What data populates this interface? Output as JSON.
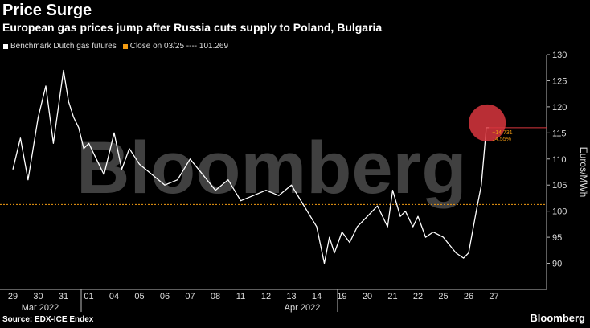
{
  "title": "Price Surge",
  "subtitle": "European gas prices jump after Russia cuts supply to Poland, Bulgaria",
  "legend": {
    "series_label": "Benchmark Dutch gas futures",
    "reference_label": "Close on 03/25 ---- 101.269"
  },
  "source": "Source: EDX-ICE Endex",
  "brand": "Bloomberg",
  "watermark": "Bloomberg",
  "colors": {
    "background": "#000000",
    "line": "#ffffff",
    "reference": "#f39c12",
    "highlight": "#d9363e",
    "grid": "#2a2a2a"
  },
  "chart_data": {
    "type": "line",
    "ylabel": "Euros/MWh",
    "ylim": [
      85,
      130
    ],
    "yticks": [
      90,
      95,
      100,
      105,
      110,
      115,
      120,
      125,
      130
    ],
    "x_tick_labels": [
      "29",
      "30",
      "31",
      "01",
      "04",
      "05",
      "06",
      "07",
      "08",
      "11",
      "12",
      "13",
      "14",
      "19",
      "20",
      "21",
      "22",
      "25",
      "26",
      "27"
    ],
    "month_labels": [
      "Mar 2022",
      "Apr 2022"
    ],
    "reference_line": {
      "label": "Close on 03/25",
      "value": 101.269
    },
    "annotation": {
      "change": "+14.731",
      "change_pct": "14.55%",
      "last_value": 116.0
    },
    "series": [
      {
        "name": "Benchmark Dutch gas futures",
        "x": [
          0,
          0.3,
          0.6,
          1.0,
          1.3,
          1.6,
          2.0,
          2.2,
          2.4,
          2.6,
          2.8,
          3.0,
          3.3,
          3.6,
          4.0,
          4.3,
          4.6,
          5.0,
          5.5,
          6.0,
          6.5,
          7.0,
          7.5,
          8.0,
          8.5,
          9.0,
          9.5,
          10.0,
          10.5,
          11.0,
          11.5,
          12.0,
          12.3,
          12.5,
          12.7,
          13.0,
          13.3,
          13.6,
          14.0,
          14.4,
          14.8,
          15.0,
          15.3,
          15.5,
          15.8,
          16.0,
          16.3,
          16.6,
          17.0,
          17.5,
          17.8,
          18.0,
          18.3,
          18.5,
          18.7,
          18.8
        ],
        "y": [
          108,
          114,
          106,
          118,
          124,
          113,
          127,
          121,
          118,
          116,
          112,
          113,
          110,
          107,
          115,
          108,
          112,
          109,
          107,
          105,
          106,
          110,
          107,
          104,
          106,
          102,
          103,
          104,
          103,
          105,
          101,
          97,
          90,
          95,
          92,
          96,
          94,
          97,
          99,
          101,
          97,
          104,
          99,
          100,
          97,
          99,
          95,
          96,
          95,
          92,
          91,
          92,
          100,
          105,
          116,
          116
        ]
      }
    ]
  }
}
